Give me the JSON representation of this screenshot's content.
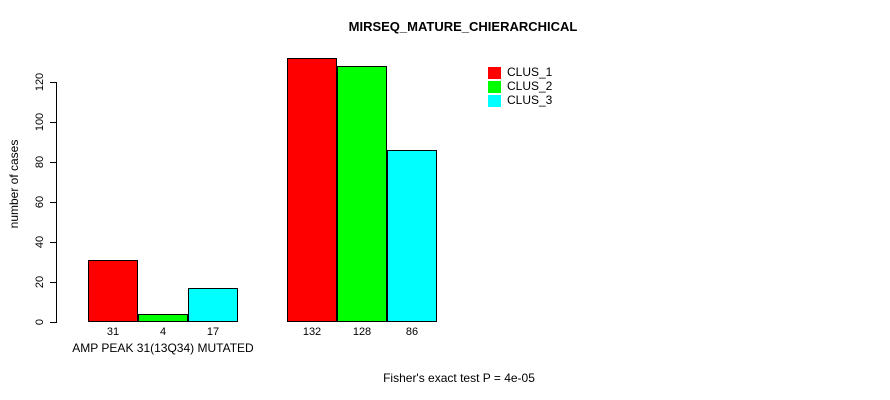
{
  "chart_data": {
    "type": "bar",
    "title": "MIRSEQ_MATURE_CHIERARCHICAL",
    "ylabel": "number of cases",
    "xlabel": "AMP PEAK 31(13Q34) MUTATED",
    "footnote": "Fisher's exact test P = 4e-05",
    "yticks": [
      0,
      20,
      40,
      60,
      80,
      100,
      120
    ],
    "ylim": [
      0,
      135
    ],
    "grid": false,
    "legend_position": "top-right",
    "bar_value_labels_shown": true,
    "series": [
      {
        "name": "CLUS_1",
        "color": "#ff0000"
      },
      {
        "name": "CLUS_2",
        "color": "#00ff00"
      },
      {
        "name": "CLUS_3",
        "color": "#00ffff"
      }
    ],
    "categories": [
      "AMP PEAK 31(13Q34) MUTATED",
      ""
    ],
    "groups": [
      {
        "label": "AMP PEAK 31(13Q34) MUTATED",
        "values": [
          31,
          4,
          17
        ]
      },
      {
        "label": "",
        "values": [
          132,
          128,
          86
        ]
      }
    ]
  }
}
